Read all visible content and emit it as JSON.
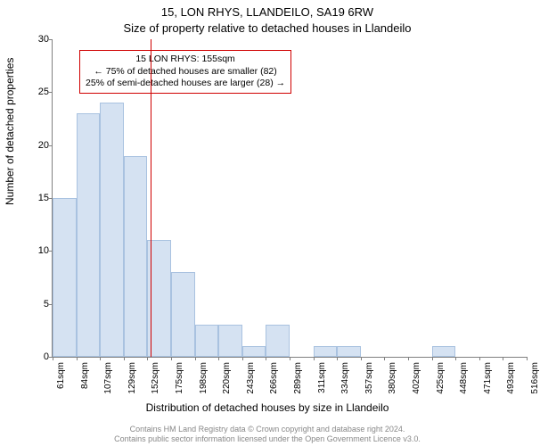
{
  "title_line1": "15, LON RHYS, LLANDEILO, SA19 6RW",
  "title_line2": "Size of property relative to detached houses in Llandeilo",
  "ylabel": "Number of detached properties",
  "xlabel": "Distribution of detached houses by size in Llandeilo",
  "footer_line1": "Contains HM Land Registry data © Crown copyright and database right 2024.",
  "footer_line2": "Contains public sector information licensed under the Open Government Licence v3.0.",
  "chart": {
    "type": "histogram",
    "ylim": [
      0,
      30
    ],
    "ytick_step": 5,
    "yticks": [
      0,
      5,
      10,
      15,
      20,
      25,
      30
    ],
    "xticks": [
      "61sqm",
      "84sqm",
      "107sqm",
      "129sqm",
      "152sqm",
      "175sqm",
      "198sqm",
      "220sqm",
      "243sqm",
      "266sqm",
      "289sqm",
      "311sqm",
      "334sqm",
      "357sqm",
      "380sqm",
      "402sqm",
      "425sqm",
      "448sqm",
      "471sqm",
      "493sqm",
      "516sqm"
    ],
    "values": [
      15,
      23,
      24,
      19,
      11,
      8,
      3,
      3,
      1,
      3,
      0,
      1,
      1,
      0,
      0,
      0,
      1,
      0,
      0,
      0
    ],
    "bar_fill": "#d5e2f2",
    "bar_border": "#a9c2e0",
    "axis_color": "#808080",
    "background_color": "#ffffff",
    "marker_value_sqm": 155,
    "marker_color": "#d00000",
    "x_range_sqm": [
      61,
      516
    ]
  },
  "annotation": {
    "line1": "15 LON RHYS: 155sqm",
    "line2": "← 75% of detached houses are smaller (82)",
    "line3": "25% of semi-detached houses are larger (28) →"
  }
}
